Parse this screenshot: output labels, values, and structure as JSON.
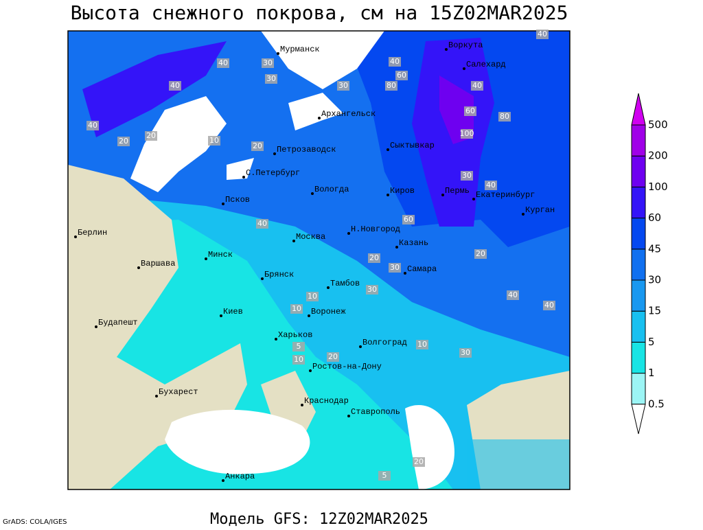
{
  "header": {
    "title": "Высота снежного покрова, см на 15Z02MAR2025"
  },
  "footer": {
    "credit": "GrADS: COLA/IGES",
    "model": "Модель GFS: 12Z02MAR2025"
  },
  "cities": [
    "Мурманск",
    "Воркута",
    "Салехард",
    "Архангельск",
    "Петрозаводск",
    "Сыктывкар",
    "С.Петербург",
    "Вологда",
    "Киров",
    "Пермь",
    "Екатеринбург",
    "Курган",
    "Псков",
    "Н.Новгород",
    "Казань",
    "Берлин",
    "Москва",
    "Минск",
    "Варшава",
    "Самара",
    "Брянск",
    "Тамбов",
    "Воронеж",
    "Киев",
    "Будапешт",
    "Харьков",
    "Волгоград",
    "Ростов-на-Дону",
    "Бухарест",
    "Краснодар",
    "Ставрополь",
    "Анкара"
  ],
  "contour_labels": [
    40,
    30,
    40,
    40,
    20,
    40,
    20,
    10,
    20,
    30,
    60,
    80,
    60,
    40,
    80,
    100,
    40,
    30,
    60,
    20,
    40,
    10,
    10,
    30,
    10,
    20,
    30,
    20,
    5,
    10,
    40,
    40,
    30,
    20,
    5,
    40,
    30
  ],
  "colorbar": {
    "levels": [
      0.5,
      1,
      5,
      15,
      30,
      45,
      60,
      100,
      200,
      500
    ],
    "colors": [
      "#ffffff",
      "#9cf5f5",
      "#18e4e4",
      "#18c0f0",
      "#1898f0",
      "#1070f0",
      "#0448f0",
      "#3414f8",
      "#6e00f0",
      "#a000e8",
      "#d000f0"
    ]
  }
}
